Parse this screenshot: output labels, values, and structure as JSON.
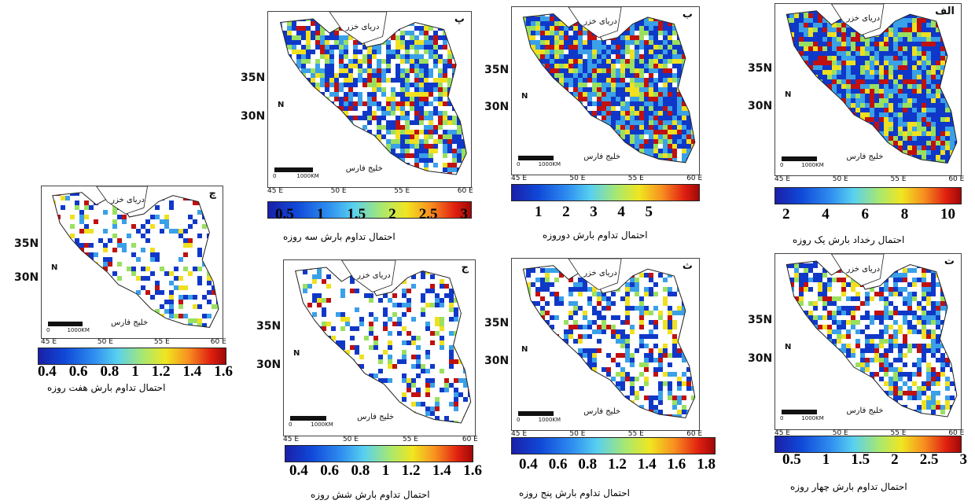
{
  "colors": {
    "low": "#1038c8",
    "mid": "#3aa0e8",
    "green": "#9ae060",
    "yellow": "#f0e020",
    "high": "#c01010"
  },
  "panels": [
    {
      "letter": "الف",
      "sea": "دریای خزر",
      "gulf": "خلیج فارس",
      "scale_zero": "0",
      "scale_km": "1000KM",
      "lat": [
        "35N",
        "30N"
      ],
      "lon": [
        "45 E",
        "50 E",
        "55 E",
        "60 E"
      ],
      "north": "N",
      "ticks": [
        "2",
        "4",
        "6",
        "8",
        "10"
      ],
      "caption": "احتمال رخداد بارش یک روزه",
      "coverage": 1.0
    },
    {
      "letter": "ب",
      "sea": "دریای خزر",
      "gulf": "خلیج فارس",
      "scale_zero": "0",
      "scale_km": "1000KM",
      "lat": [
        "35N",
        "30N"
      ],
      "lon": [
        "45 E",
        "50 E",
        "55 E",
        "60 E"
      ],
      "north": "N",
      "ticks": [
        "1",
        "2",
        "3",
        "4",
        "5"
      ],
      "caption": "احتمال تداوم بارش دوروزه",
      "coverage": 0.95
    },
    {
      "letter": "پ",
      "sea": "دریای خزر",
      "gulf": "خلیج فارس",
      "scale_zero": "0",
      "scale_km": "1000KM",
      "lat": [
        "35N",
        "30N"
      ],
      "lon": [
        "45 E",
        "50 E",
        "55 E",
        "60 E"
      ],
      "north": "N",
      "ticks": [
        "0.5",
        "1",
        "1.5",
        "2",
        "2.5",
        "3"
      ],
      "caption": "احتمال تداوم بارش سه روزه",
      "coverage": 0.75
    },
    {
      "letter": "ت",
      "sea": "دریای خزر",
      "gulf": "خلیج فارس",
      "scale_zero": "0",
      "scale_km": "1000KM",
      "lat": [
        "35N",
        "30N"
      ],
      "lon": [
        "45 E",
        "50 E",
        "55 E",
        "60 E"
      ],
      "north": "N",
      "ticks": [
        "0.5",
        "1",
        "1.5",
        "2",
        "2.5",
        "3"
      ],
      "caption": "احتمال تداوم بارش چهار روزه",
      "coverage": 0.6
    },
    {
      "letter": "ث",
      "sea": "دریای خزر",
      "gulf": "خلیج فارس",
      "scale_zero": "0",
      "scale_km": "1000KM",
      "lat": [
        "35N",
        "30N"
      ],
      "lon": [
        "45 E",
        "50 E",
        "55 E",
        "60 E"
      ],
      "north": "N",
      "ticks": [
        "0.4",
        "0.6",
        "0.8",
        "1.2",
        "1.4",
        "1.6",
        "1.8"
      ],
      "caption": "احتمال تداوم بارش پنج روزه",
      "coverage": 0.45
    },
    {
      "letter": "ج",
      "sea": "دریای خزر",
      "gulf": "خلیج فارس",
      "scale_zero": "0",
      "scale_km": "1000KM",
      "lat": [
        "35N",
        "30N"
      ],
      "lon": [
        "45 E",
        "50 E",
        "55 E",
        "60 E"
      ],
      "north": "N",
      "ticks": [
        "0.4",
        "0.6",
        "0.8",
        "1",
        "1.2",
        "1.4",
        "1.6"
      ],
      "caption": "احتمال تداوم بارش شش روزه",
      "coverage": 0.35
    },
    {
      "letter": "چ",
      "sea": "دریای خزر",
      "gulf": "خلیج فارس",
      "scale_zero": "0",
      "scale_km": "1000KM",
      "lat": [
        "35N",
        "30N"
      ],
      "lon": [
        "45 E",
        "50 E",
        "55 E",
        "60 E"
      ],
      "north": "N",
      "ticks": [
        "0.4",
        "0.6",
        "0.8",
        "1",
        "1.2",
        "1.4",
        "1.6"
      ],
      "caption": "احتمال تداوم بارش هفت روزه",
      "coverage": 0.3
    }
  ]
}
